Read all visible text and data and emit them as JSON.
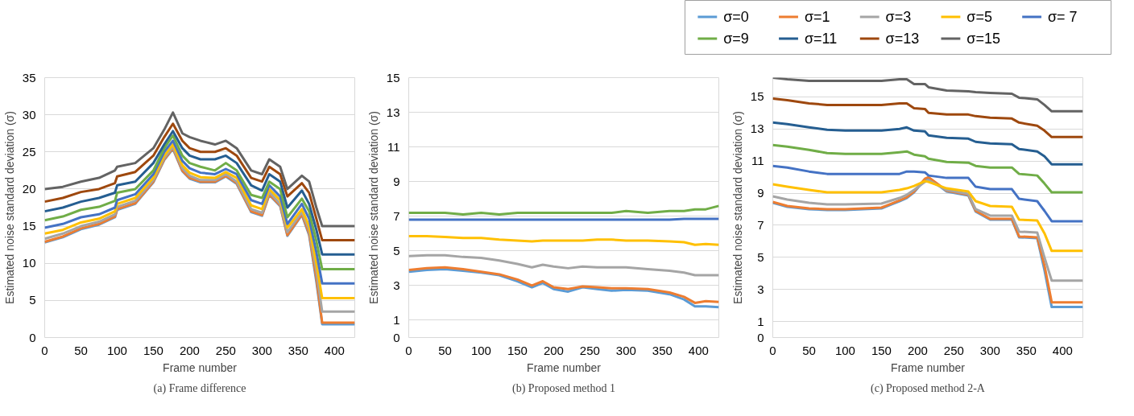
{
  "chart_data": [
    {
      "type": "line",
      "title": "(a) Frame difference",
      "xlabel": "Frame number",
      "ylabel": "Estimated noise standard deviation (σ)",
      "grid": "y",
      "xlim": [
        0,
        428
      ],
      "ylim": [
        0,
        35
      ],
      "xticks": [
        0,
        50,
        100,
        150,
        200,
        250,
        300,
        350,
        400
      ],
      "yticks": [
        0,
        5,
        10,
        15,
        20,
        25,
        30,
        35
      ],
      "x": [
        0,
        25,
        50,
        75,
        97,
        100,
        125,
        150,
        165,
        177,
        190,
        200,
        215,
        235,
        250,
        265,
        285,
        300,
        310,
        325,
        335,
        355,
        365,
        375,
        383,
        428
      ],
      "series": [
        {
          "color": "#5b9bd5",
          "values": [
            12.8,
            13.5,
            14.6,
            15.2,
            16.2,
            17.2,
            18,
            20.9,
            23.9,
            25.4,
            22.4,
            21.4,
            20.9,
            20.9,
            21.7,
            20.7,
            16.9,
            16.4,
            19.2,
            17.7,
            13.7,
            16.5,
            13.8,
            7.5,
            1.8,
            1.8
          ]
        },
        {
          "color": "#ed7d31",
          "values": [
            12.9,
            13.6,
            14.7,
            15.3,
            16.3,
            17.3,
            18.1,
            21,
            24,
            25.5,
            22.5,
            21.5,
            21,
            21,
            21.8,
            20.8,
            17,
            16.5,
            19.3,
            17.8,
            13.8,
            16.6,
            14,
            8,
            2,
            2
          ]
        },
        {
          "color": "#a5a5a5",
          "values": [
            13.3,
            14,
            15,
            15.6,
            16.6,
            17.6,
            18.4,
            21.2,
            24.2,
            25.7,
            22.8,
            21.8,
            21.2,
            21.2,
            22,
            21,
            17.3,
            16.8,
            19.6,
            18,
            14.2,
            16.9,
            14.5,
            9,
            3.5,
            3.5
          ]
        },
        {
          "color": "#ffc000",
          "values": [
            14,
            14.5,
            15.5,
            16,
            17,
            18,
            18.8,
            21.5,
            24.5,
            26,
            23.2,
            22.2,
            21.6,
            21.5,
            22.3,
            21.5,
            17.8,
            17.3,
            20,
            18.5,
            14.8,
            17.3,
            15,
            10,
            5.3,
            5.3
          ]
        },
        {
          "color": "#4472c4",
          "values": [
            14.8,
            15.3,
            16.2,
            16.6,
            17.5,
            18.5,
            19.3,
            22,
            25,
            26.5,
            23.8,
            22.8,
            22.2,
            22,
            22.7,
            22,
            18.5,
            18,
            20.5,
            19,
            15.3,
            18,
            16,
            11.5,
            7.3,
            7.3
          ]
        },
        {
          "color": "#70ad47",
          "values": [
            15.8,
            16.3,
            17.2,
            17.6,
            18.4,
            19.5,
            20,
            22.5,
            25.5,
            27.2,
            24.5,
            23.5,
            23,
            22.5,
            23.5,
            22.5,
            19.2,
            18.8,
            21,
            20,
            16.2,
            18.7,
            17,
            13,
            9.2,
            9.2
          ]
        },
        {
          "color": "#255e91",
          "values": [
            17,
            17.5,
            18.3,
            18.8,
            19.5,
            20.5,
            21,
            23.5,
            26,
            27.8,
            25.5,
            24.5,
            24,
            24,
            24.5,
            23.5,
            20.5,
            19.8,
            22,
            21,
            17.5,
            19.8,
            18,
            14.5,
            11.2,
            11.2
          ]
        },
        {
          "color": "#9e480e",
          "values": [
            18.3,
            18.8,
            19.6,
            20,
            20.8,
            21.7,
            22.3,
            24.5,
            27,
            28.8,
            26.5,
            25.5,
            25,
            25,
            25.5,
            24.5,
            21.5,
            21,
            23,
            22,
            19,
            20.8,
            19.5,
            16,
            13.1,
            13.1
          ]
        },
        {
          "color": "#636363",
          "values": [
            20,
            20.3,
            21,
            21.5,
            22.5,
            23,
            23.5,
            25.5,
            28,
            30.3,
            27.5,
            27,
            26.5,
            26,
            26.5,
            25.5,
            22.5,
            22,
            24,
            23,
            20,
            21.8,
            21,
            17.5,
            15,
            15
          ]
        }
      ]
    },
    {
      "type": "line",
      "title": "(b) Proposed method 1",
      "xlabel": "Frame number",
      "ylabel": "Estimated noise standard deviation (σ)",
      "grid": "y",
      "xlim": [
        0,
        428
      ],
      "ylim": [
        0,
        15
      ],
      "xticks": [
        0,
        50,
        100,
        150,
        200,
        250,
        300,
        350,
        400
      ],
      "yticks": [
        0,
        1,
        3,
        5,
        7,
        9,
        11,
        13,
        15
      ],
      "x": [
        0,
        25,
        50,
        75,
        100,
        125,
        150,
        170,
        185,
        200,
        220,
        240,
        260,
        280,
        300,
        330,
        360,
        380,
        395,
        410,
        428
      ],
      "series": [
        {
          "color": "#5b9bd5",
          "values": [
            3.8,
            3.9,
            3.95,
            3.85,
            3.75,
            3.6,
            3.25,
            2.9,
            3.15,
            2.8,
            2.65,
            2.9,
            2.8,
            2.7,
            2.75,
            2.7,
            2.5,
            2.2,
            1.8,
            1.8,
            1.75
          ]
        },
        {
          "color": "#ed7d31",
          "values": [
            3.9,
            4,
            4.05,
            3.95,
            3.8,
            3.65,
            3.35,
            3,
            3.25,
            2.9,
            2.8,
            2.95,
            2.9,
            2.85,
            2.85,
            2.8,
            2.6,
            2.35,
            2,
            2.1,
            2.05
          ]
        },
        {
          "color": "#a5a5a5",
          "values": [
            4.7,
            4.75,
            4.75,
            4.65,
            4.6,
            4.45,
            4.25,
            4.05,
            4.2,
            4.1,
            4,
            4.1,
            4.05,
            4.05,
            4.05,
            3.95,
            3.85,
            3.75,
            3.6,
            3.6,
            3.6
          ]
        },
        {
          "color": "#ffc000",
          "values": [
            5.85,
            5.85,
            5.8,
            5.75,
            5.75,
            5.65,
            5.6,
            5.55,
            5.6,
            5.6,
            5.6,
            5.6,
            5.65,
            5.65,
            5.6,
            5.6,
            5.55,
            5.5,
            5.35,
            5.4,
            5.35
          ]
        },
        {
          "color": "#4472c4",
          "values": [
            6.8,
            6.8,
            6.8,
            6.8,
            6.8,
            6.8,
            6.8,
            6.8,
            6.8,
            6.8,
            6.8,
            6.8,
            6.8,
            6.8,
            6.8,
            6.8,
            6.8,
            6.85,
            6.85,
            6.85,
            6.85
          ]
        },
        {
          "color": "#70ad47",
          "values": [
            7.2,
            7.2,
            7.2,
            7.1,
            7.2,
            7.1,
            7.2,
            7.2,
            7.2,
            7.2,
            7.2,
            7.2,
            7.2,
            7.2,
            7.3,
            7.2,
            7.3,
            7.3,
            7.4,
            7.4,
            7.6
          ]
        }
      ]
    },
    {
      "type": "line",
      "title": "(c) Proposed method 2-A",
      "xlabel": "Frame number",
      "ylabel": "Estimated noise standard deviation (σ)",
      "grid": "y",
      "legend": "top",
      "xlim": [
        0,
        428
      ],
      "ylim": [
        0,
        16.2
      ],
      "xticks": [
        0,
        50,
        100,
        150,
        200,
        250,
        300,
        350,
        400
      ],
      "yticks": [
        0,
        1,
        3,
        5,
        7,
        9,
        11,
        13,
        15
      ],
      "x": [
        0,
        20,
        50,
        75,
        100,
        150,
        175,
        185,
        195,
        210,
        215,
        240,
        270,
        280,
        300,
        330,
        340,
        365,
        375,
        385,
        428
      ],
      "series": [
        {
          "name": "σ=0",
          "color": "#5b9bd5",
          "values": [
            8.4,
            8.15,
            8,
            7.95,
            7.95,
            8.05,
            8.5,
            8.7,
            9.05,
            9.85,
            9.95,
            9.1,
            8.85,
            7.85,
            7.35,
            7.35,
            6.25,
            6.2,
            4.2,
            1.9,
            1.9
          ]
        },
        {
          "name": "σ=1",
          "color": "#ed7d31",
          "values": [
            8.45,
            8.2,
            8.05,
            8,
            8,
            8.1,
            8.55,
            8.75,
            9.1,
            9.9,
            10,
            9.15,
            8.9,
            7.9,
            7.4,
            7.4,
            6.3,
            6.25,
            4.5,
            2.2,
            2.2
          ]
        },
        {
          "name": "σ=3",
          "color": "#a5a5a5",
          "values": [
            8.8,
            8.6,
            8.4,
            8.3,
            8.3,
            8.35,
            8.7,
            8.9,
            9.2,
            9.7,
            9.8,
            9.2,
            8.95,
            8,
            7.6,
            7.6,
            6.6,
            6.55,
            5,
            3.55,
            3.55
          ]
        },
        {
          "name": "σ=5",
          "color": "#ffc000",
          "values": [
            9.55,
            9.4,
            9.2,
            9.05,
            9.05,
            9.05,
            9.2,
            9.3,
            9.45,
            9.75,
            9.7,
            9.3,
            9.1,
            8.5,
            8.2,
            8.15,
            7.35,
            7.3,
            6.5,
            5.4,
            5.4
          ]
        },
        {
          "name": "σ=  7",
          "color": "#4472c4",
          "values": [
            10.7,
            10.6,
            10.35,
            10.2,
            10.2,
            10.2,
            10.2,
            10.35,
            10.35,
            10.3,
            10.1,
            9.95,
            9.95,
            9.4,
            9.25,
            9.25,
            8.65,
            8.5,
            7.9,
            7.25,
            7.25
          ]
        },
        {
          "name": "σ=9",
          "color": "#70ad47",
          "values": [
            12,
            11.9,
            11.7,
            11.5,
            11.45,
            11.45,
            11.55,
            11.6,
            11.4,
            11.3,
            11.15,
            10.95,
            10.9,
            10.7,
            10.6,
            10.6,
            10.2,
            10.1,
            9.6,
            9.05,
            9.05
          ]
        },
        {
          "name": "σ=11",
          "color": "#255e91",
          "values": [
            13.4,
            13.3,
            13.1,
            12.95,
            12.9,
            12.9,
            13,
            13.1,
            12.9,
            12.85,
            12.6,
            12.45,
            12.4,
            12.2,
            12.1,
            12.05,
            11.75,
            11.6,
            11.3,
            10.8,
            10.8
          ]
        },
        {
          "name": "σ=13",
          "color": "#9e480e",
          "values": [
            14.9,
            14.8,
            14.6,
            14.5,
            14.5,
            14.5,
            14.6,
            14.6,
            14.3,
            14.25,
            14,
            13.9,
            13.9,
            13.8,
            13.7,
            13.65,
            13.4,
            13.2,
            12.9,
            12.5,
            12.5
          ]
        },
        {
          "name": "σ=15",
          "color": "#636363",
          "values": [
            16.2,
            16.1,
            16,
            16,
            16,
            16,
            16.1,
            16.1,
            15.8,
            15.8,
            15.6,
            15.4,
            15.35,
            15.3,
            15.25,
            15.2,
            14.95,
            14.85,
            14.5,
            14.1,
            14.1
          ]
        }
      ]
    }
  ]
}
